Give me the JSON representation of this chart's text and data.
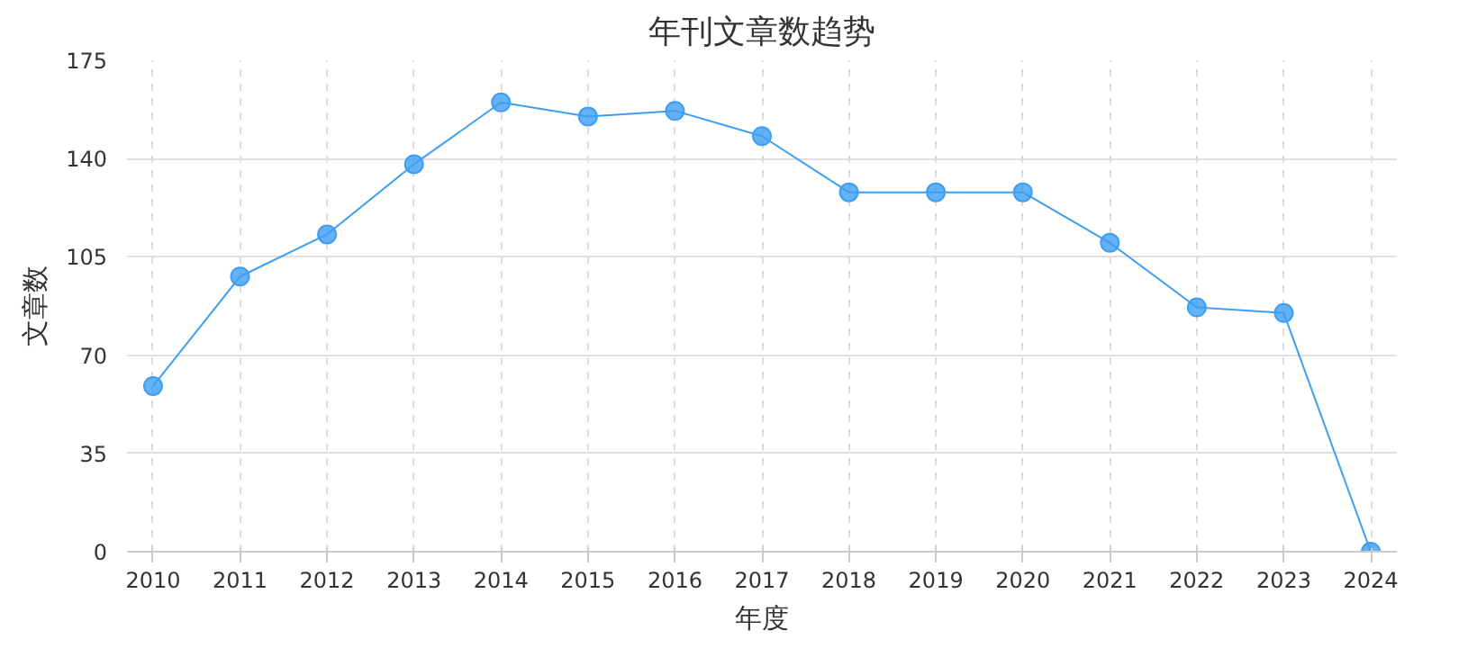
{
  "chart_data": {
    "type": "line",
    "title": "年刊文章数趋势",
    "xlabel": "年度",
    "ylabel": "文章数",
    "categories": [
      "2010",
      "2011",
      "2012",
      "2013",
      "2014",
      "2015",
      "2016",
      "2017",
      "2018",
      "2019",
      "2020",
      "2021",
      "2022",
      "2023",
      "2024"
    ],
    "series": [
      {
        "color": "#3d9ef2",
        "values": [
          59,
          98,
          113,
          138,
          160,
          155,
          157,
          148,
          128,
          128,
          128,
          110,
          87,
          85,
          0
        ]
      }
    ],
    "ylim": [
      0,
      175
    ],
    "yticks": [
      0,
      35,
      70,
      105,
      140,
      175
    ],
    "grid": true,
    "marker": "circle",
    "line_style": "solid"
  }
}
